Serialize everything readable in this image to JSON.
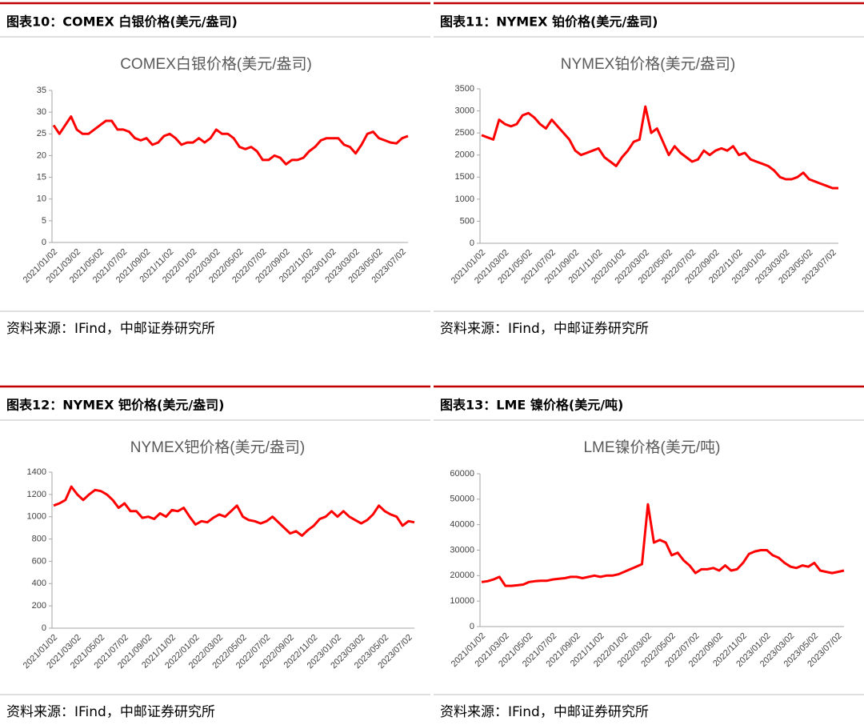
{
  "chart_data": [
    {
      "type": "line",
      "caption": "图表10：COMEX 白银价格(美元/盎司)",
      "title": "COMEX白银价格(美元/盎司)",
      "source": "资料来源：IFind，中邮证券研究所",
      "categories": [
        "2021/01/02",
        null,
        null,
        null,
        "2021/03/02",
        null,
        null,
        null,
        "2021/05/02",
        null,
        null,
        null,
        "2021/07/02",
        null,
        null,
        null,
        "2021/09/02",
        null,
        null,
        null,
        "2021/11/02",
        null,
        null,
        null,
        "2022/01/02",
        null,
        null,
        null,
        "2022/03/02",
        null,
        null,
        null,
        "2022/05/02",
        null,
        null,
        null,
        "2022/07/02",
        null,
        null,
        null,
        "2022/09/02",
        null,
        null,
        null,
        "2022/11/02",
        null,
        null,
        null,
        "2023/01/02",
        null,
        null,
        null,
        "2023/03/02",
        null,
        null,
        null,
        "2023/05/02",
        null,
        null,
        null,
        "2023/07/02",
        null
      ],
      "values": [
        27,
        25,
        27,
        29,
        26,
        25,
        25,
        26,
        27,
        28,
        28,
        26,
        26,
        25.5,
        24,
        23.5,
        24,
        22.5,
        23,
        24.5,
        25,
        24,
        22.5,
        23,
        23,
        24,
        23,
        24,
        26,
        25,
        25,
        24,
        22,
        21.5,
        22,
        21,
        19,
        19,
        20,
        19.5,
        18,
        19,
        19,
        19.5,
        21,
        22,
        23.5,
        24,
        24,
        24,
        22.5,
        22,
        20.5,
        22.5,
        25,
        25.5,
        24,
        23.5,
        23,
        22.8,
        24,
        24.5
      ],
      "color": "#ff0000",
      "ylim": [
        0,
        35
      ],
      "yticks": [
        0,
        5,
        10,
        15,
        20,
        25,
        30,
        35
      ]
    },
    {
      "type": "line",
      "caption": "图表11：NYMEX 铂价格(美元/盎司)",
      "title": "NYMEX铂价格(美元/盎司)",
      "source": "资料来源：IFind，中邮证券研究所",
      "categories": [
        "2021/01/02",
        null,
        null,
        null,
        "2021/03/02",
        null,
        null,
        null,
        "2021/05/02",
        null,
        null,
        null,
        "2021/07/02",
        null,
        null,
        null,
        "2021/09/02",
        null,
        null,
        null,
        "2021/11/02",
        null,
        null,
        null,
        "2022/01/02",
        null,
        null,
        null,
        "2022/03/02",
        null,
        null,
        null,
        "2022/05/02",
        null,
        null,
        null,
        "2022/07/02",
        null,
        null,
        null,
        "2022/09/02",
        null,
        null,
        null,
        "2022/11/02",
        null,
        null,
        null,
        "2023/01/02",
        null,
        null,
        null,
        "2023/03/02",
        null,
        null,
        null,
        "2023/05/02",
        null,
        null,
        null,
        "2023/07/02",
        null
      ],
      "values": [
        2450,
        2400,
        2350,
        2800,
        2700,
        2650,
        2700,
        2900,
        2950,
        2850,
        2700,
        2600,
        2800,
        2650,
        2500,
        2350,
        2100,
        2000,
        2050,
        2100,
        2150,
        1950,
        1850,
        1750,
        1950,
        2100,
        2300,
        2350,
        3100,
        2500,
        2600,
        2300,
        2000,
        2200,
        2050,
        1950,
        1850,
        1900,
        2100,
        2000,
        2100,
        2150,
        2100,
        2200,
        2000,
        2050,
        1900,
        1850,
        1800,
        1750,
        1650,
        1500,
        1450,
        1450,
        1500,
        1600,
        1450,
        1400,
        1350,
        1300,
        1250,
        1250
      ],
      "color": "#ff0000",
      "ylim": [
        0,
        3500
      ],
      "yticks": [
        0,
        500,
        1000,
        1500,
        2000,
        2500,
        3000,
        3500
      ]
    },
    {
      "type": "line",
      "caption": "图表12：NYMEX 钯价格(美元/盎司)",
      "title": "NYMEX钯价格(美元/盎司)",
      "source": "资料来源：IFind，中邮证券研究所",
      "categories": [
        "2021/01/02",
        null,
        null,
        null,
        "2021/03/02",
        null,
        null,
        null,
        "2021/05/02",
        null,
        null,
        null,
        "2021/07/02",
        null,
        null,
        null,
        "2021/09/02",
        null,
        null,
        null,
        "2021/11/02",
        null,
        null,
        null,
        "2022/01/02",
        null,
        null,
        null,
        "2022/03/02",
        null,
        null,
        null,
        "2022/05/02",
        null,
        null,
        null,
        "2022/07/02",
        null,
        null,
        null,
        "2022/09/02",
        null,
        null,
        null,
        "2022/11/02",
        null,
        null,
        null,
        "2023/01/02",
        null,
        null,
        null,
        "2023/03/02",
        null,
        null,
        null,
        "2023/05/02",
        null,
        null,
        null,
        "2023/07/02",
        null
      ],
      "values": [
        1100,
        1120,
        1150,
        1270,
        1200,
        1150,
        1200,
        1240,
        1230,
        1200,
        1150,
        1080,
        1120,
        1050,
        1050,
        990,
        1000,
        980,
        1030,
        1000,
        1060,
        1050,
        1080,
        1000,
        930,
        960,
        950,
        990,
        1020,
        1000,
        1050,
        1100,
        1000,
        970,
        960,
        940,
        960,
        1000,
        950,
        900,
        850,
        870,
        830,
        880,
        920,
        980,
        1000,
        1050,
        1000,
        1050,
        1000,
        970,
        940,
        970,
        1020,
        1100,
        1050,
        1020,
        1000,
        920,
        960,
        950
      ],
      "color": "#ff0000",
      "ylim": [
        0,
        1400
      ],
      "yticks": [
        0,
        200,
        400,
        600,
        800,
        1000,
        1200,
        1400
      ]
    },
    {
      "type": "line",
      "caption": "图表13：LME 镍价格(美元/吨)",
      "title": "LME镍价格(美元/吨)",
      "source": "资料来源：IFind，中邮证券研究所",
      "categories": [
        "2021/01/02",
        null,
        null,
        null,
        "2021/03/02",
        null,
        null,
        null,
        "2021/05/02",
        null,
        null,
        null,
        "2021/07/02",
        null,
        null,
        null,
        "2021/09/02",
        null,
        null,
        null,
        "2021/11/02",
        null,
        null,
        null,
        "2022/01/02",
        null,
        null,
        null,
        "2022/03/02",
        null,
        null,
        null,
        "2022/05/02",
        null,
        null,
        null,
        "2022/07/02",
        null,
        null,
        null,
        "2022/09/02",
        null,
        null,
        null,
        "2022/11/02",
        null,
        null,
        null,
        "2023/01/02",
        null,
        null,
        null,
        "2023/03/02",
        null,
        null,
        null,
        "2023/05/02",
        null,
        null,
        null,
        "2023/07/02",
        null
      ],
      "values": [
        17500,
        17800,
        18500,
        19500,
        16000,
        16000,
        16200,
        16500,
        17500,
        17800,
        18000,
        18000,
        18500,
        18800,
        19000,
        19500,
        19500,
        19000,
        19500,
        20000,
        19500,
        20000,
        20000,
        20500,
        21500,
        22500,
        23500,
        24500,
        48000,
        33000,
        34000,
        33000,
        28000,
        29000,
        26000,
        24000,
        21000,
        22500,
        22500,
        23000,
        22000,
        24000,
        22000,
        22500,
        25000,
        28500,
        29500,
        30000,
        30000,
        28000,
        27000,
        25000,
        23500,
        23000,
        24000,
        23500,
        25000,
        22000,
        21500,
        21000,
        21500,
        22000
      ],
      "color": "#ff0000",
      "ylim": [
        0,
        60000
      ],
      "yticks": [
        0,
        10000,
        20000,
        30000,
        40000,
        50000,
        60000
      ]
    }
  ]
}
